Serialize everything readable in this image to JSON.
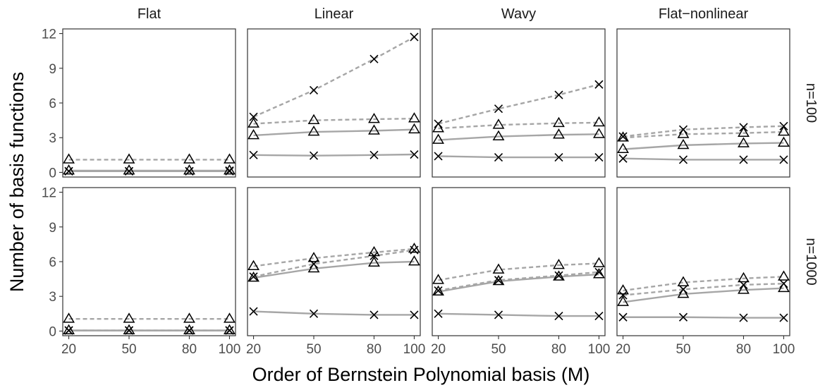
{
  "chart_data": {
    "type": "line",
    "xlabel": "Order of Bernstein Polynomial basis (M)",
    "ylabel": "Number of basis functions",
    "x": [
      20,
      50,
      80,
      100
    ],
    "x_ticks": [
      "20",
      "50",
      "80",
      "100"
    ],
    "y_ticks": [
      "0",
      "3",
      "6",
      "9",
      "12"
    ],
    "xlim": [
      17,
      103
    ],
    "ylim": [
      -0.4,
      12.4
    ],
    "facet_columns": [
      "Flat",
      "Linear",
      "Wavy",
      "Flat−nonlinear"
    ],
    "facet_rows": [
      "n=100",
      "n=1000"
    ],
    "series_styles": [
      {
        "linetype": "solid",
        "marker": "x",
        "color": "#a6a6a6"
      },
      {
        "linetype": "solid",
        "marker": "triangle",
        "color": "#a6a6a6"
      },
      {
        "linetype": "dashed",
        "marker": "x",
        "color": "#a6a6a6"
      },
      {
        "linetype": "dashed",
        "marker": "triangle",
        "color": "#a6a6a6"
      }
    ],
    "panels": [
      {
        "col": "Flat",
        "row": "n=100",
        "series": [
          {
            "values": [
              0.1,
              0.1,
              0.1,
              0.1
            ]
          },
          {
            "values": [
              0.15,
              0.15,
              0.15,
              0.15
            ]
          },
          {
            "values": [
              0.1,
              0.1,
              0.1,
              0.15
            ]
          },
          {
            "values": [
              1.1,
              1.1,
              1.1,
              1.1
            ]
          }
        ]
      },
      {
        "col": "Linear",
        "row": "n=100",
        "series": [
          {
            "values": [
              1.5,
              1.45,
              1.5,
              1.55
            ]
          },
          {
            "values": [
              3.2,
              3.5,
              3.6,
              3.7
            ]
          },
          {
            "values": [
              4.8,
              7.1,
              9.8,
              11.7
            ]
          },
          {
            "values": [
              4.2,
              4.5,
              4.6,
              4.65
            ]
          }
        ]
      },
      {
        "col": "Wavy",
        "row": "n=100",
        "series": [
          {
            "values": [
              1.4,
              1.3,
              1.3,
              1.3
            ]
          },
          {
            "values": [
              2.8,
              3.1,
              3.25,
              3.3
            ]
          },
          {
            "values": [
              4.2,
              5.5,
              6.7,
              7.6
            ]
          },
          {
            "values": [
              3.8,
              4.1,
              4.25,
              4.3
            ]
          }
        ]
      },
      {
        "col": "Flat−nonlinear",
        "row": "n=100",
        "series": [
          {
            "values": [
              1.2,
              1.1,
              1.1,
              1.1
            ]
          },
          {
            "values": [
              2.0,
              2.35,
              2.5,
              2.55
            ]
          },
          {
            "values": [
              3.1,
              3.7,
              3.9,
              4.0
            ]
          },
          {
            "values": [
              3.0,
              3.3,
              3.4,
              3.5
            ]
          }
        ]
      },
      {
        "col": "Flat",
        "row": "n=1000",
        "series": [
          {
            "values": [
              0.05,
              0.05,
              0.05,
              0.05
            ]
          },
          {
            "values": [
              0.05,
              0.05,
              0.05,
              0.05
            ]
          },
          {
            "values": [
              0.05,
              0.05,
              0.05,
              0.05
            ]
          },
          {
            "values": [
              1.05,
              1.05,
              1.05,
              1.05
            ]
          }
        ]
      },
      {
        "col": "Linear",
        "row": "n=1000",
        "series": [
          {
            "values": [
              1.7,
              1.5,
              1.4,
              1.4
            ]
          },
          {
            "values": [
              4.6,
              5.4,
              5.9,
              6.0
            ]
          },
          {
            "values": [
              4.7,
              5.8,
              6.5,
              7.0
            ]
          },
          {
            "values": [
              5.6,
              6.3,
              6.8,
              7.1
            ]
          }
        ]
      },
      {
        "col": "Wavy",
        "row": "n=1000",
        "series": [
          {
            "values": [
              1.5,
              1.4,
              1.3,
              1.3
            ]
          },
          {
            "values": [
              3.4,
              4.3,
              4.7,
              4.9
            ]
          },
          {
            "values": [
              3.5,
              4.4,
              4.8,
              5.1
            ]
          },
          {
            "values": [
              4.4,
              5.3,
              5.7,
              5.85
            ]
          }
        ]
      },
      {
        "col": "Flat−nonlinear",
        "row": "n=1000",
        "series": [
          {
            "values": [
              1.2,
              1.2,
              1.15,
              1.15
            ]
          },
          {
            "values": [
              2.5,
              3.2,
              3.55,
              3.7
            ]
          },
          {
            "values": [
              3.1,
              3.6,
              4.0,
              4.1
            ]
          },
          {
            "values": [
              3.5,
              4.2,
              4.55,
              4.7
            ]
          }
        ]
      }
    ]
  }
}
